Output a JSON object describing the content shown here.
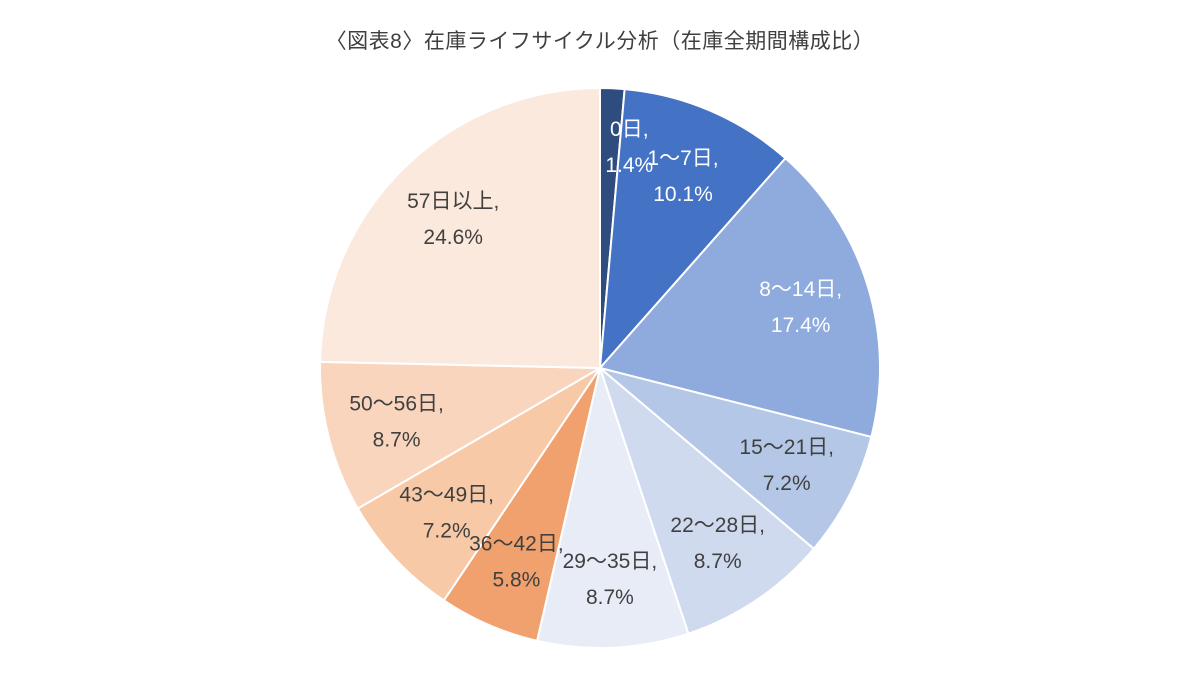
{
  "page": {
    "background": "#FFFFFF"
  },
  "chart_data": {
    "type": "pie",
    "title": "〈図表8〉在庫ライフサイクル分析（在庫全期間構成比）",
    "title_color": "#3F3F3F",
    "legend": "none",
    "data_labels": "category-and-percent, inside slices",
    "labels_format": "{category}, {value}%",
    "slice_border_color": "#FFFFFF",
    "start_angle_deg": 0,
    "direction": "clockwise",
    "unit": "%",
    "slices": [
      {
        "category": "0日",
        "value": 1.4,
        "label": "0日, 1.4%",
        "color": "#2E4D7E",
        "label_color": "#FFFFFF"
      },
      {
        "category": "1〜7日",
        "value": 10.1,
        "label": "1〜7日, 10.1%",
        "color": "#4472C4",
        "label_color": "#FFFFFF"
      },
      {
        "category": "8〜14日",
        "value": 17.4,
        "label": "8〜14日, 17.4%",
        "color": "#8FAADC",
        "label_color": "#FFFFFF"
      },
      {
        "category": "15〜21日",
        "value": 7.2,
        "label": "15〜21日, 7.2%",
        "color": "#B4C7E7",
        "label_color": "#404040"
      },
      {
        "category": "22〜28日",
        "value": 8.7,
        "label": "22〜28日, 8.7%",
        "color": "#CFDAEF",
        "label_color": "#404040"
      },
      {
        "category": "29〜35日",
        "value": 8.7,
        "label": "29〜35日, 8.7%",
        "color": "#E8ECF7",
        "label_color": "#404040"
      },
      {
        "category": "36〜42日",
        "value": 5.8,
        "label": "36〜42日, 5.8%",
        "color": "#F0A16E",
        "label_color": "#404040"
      },
      {
        "category": "43〜49日",
        "value": 7.2,
        "label": "43〜49日, 7.2%",
        "color": "#F7C9A6",
        "label_color": "#404040"
      },
      {
        "category": "50〜56日",
        "value": 8.7,
        "label": "50〜56日, 8.7%",
        "color": "#F9D5BE",
        "label_color": "#404040"
      },
      {
        "category": "57日以上",
        "value": 24.6,
        "label": "57日以上, 24.6%",
        "color": "#FCE9DE",
        "label_color": "#404040"
      }
    ]
  }
}
